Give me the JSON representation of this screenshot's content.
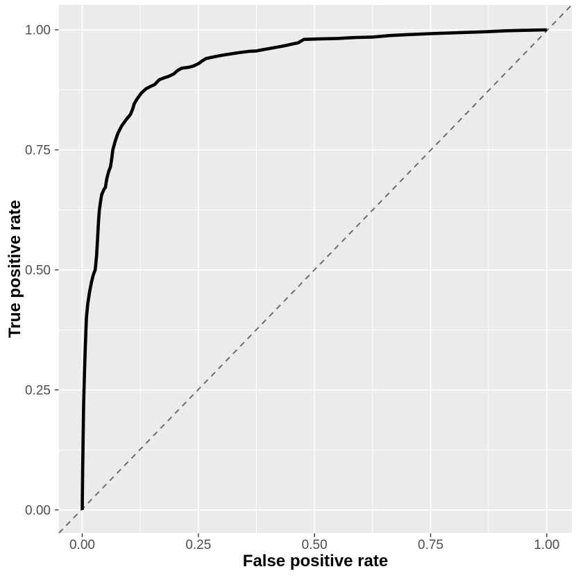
{
  "figure": {
    "kind": "ggplot-style ROC curve plot",
    "background_color": "#FFFFFF",
    "panel_color": "#EBEBEB",
    "grid_color": "#FFFFFF",
    "axis_text_color": "#4D4D4D",
    "axis_title_color": "#000000",
    "tick_mark_color": "#333333",
    "roc_curve_color": "#000000",
    "diagonal_color": "#6B6B6B"
  },
  "chart_data": {
    "type": "line",
    "title": "",
    "xlabel": "False positive rate",
    "ylabel": "True positive rate",
    "xlim": [
      0,
      1
    ],
    "ylim": [
      0,
      1
    ],
    "expansion": {
      "x": [
        -0.05,
        1.054
      ],
      "y": [
        -0.048,
        1.052
      ]
    },
    "grid": "major+minor",
    "legend": "none",
    "x_ticks": [
      {
        "value": 0.0,
        "label": "0.00"
      },
      {
        "value": 0.25,
        "label": "0.25"
      },
      {
        "value": 0.5,
        "label": "0.50"
      },
      {
        "value": 0.75,
        "label": "0.75"
      },
      {
        "value": 1.0,
        "label": "1.00"
      }
    ],
    "y_ticks": [
      {
        "value": 0.0,
        "label": "0.00"
      },
      {
        "value": 0.25,
        "label": "0.25"
      },
      {
        "value": 0.5,
        "label": "0.50"
      },
      {
        "value": 0.75,
        "label": "0.75"
      },
      {
        "value": 1.0,
        "label": "1.00"
      }
    ],
    "minor_breaks": [
      0.125,
      0.375,
      0.625,
      0.875
    ],
    "series": [
      {
        "name": "roc-curve",
        "type": "line",
        "style": "solid",
        "color": "#000000",
        "width": 4.6,
        "points": [
          [
            0.0,
            0.0
          ],
          [
            0.001,
            0.08
          ],
          [
            0.002,
            0.15
          ],
          [
            0.003,
            0.22
          ],
          [
            0.005,
            0.29
          ],
          [
            0.007,
            0.35
          ],
          [
            0.009,
            0.4
          ],
          [
            0.012,
            0.43
          ],
          [
            0.016,
            0.455
          ],
          [
            0.02,
            0.475
          ],
          [
            0.024,
            0.49
          ],
          [
            0.028,
            0.5
          ],
          [
            0.031,
            0.53
          ],
          [
            0.033,
            0.565
          ],
          [
            0.035,
            0.6
          ],
          [
            0.037,
            0.625
          ],
          [
            0.04,
            0.645
          ],
          [
            0.042,
            0.657
          ],
          [
            0.047,
            0.668
          ],
          [
            0.05,
            0.672
          ],
          [
            0.053,
            0.69
          ],
          [
            0.057,
            0.705
          ],
          [
            0.061,
            0.715
          ],
          [
            0.064,
            0.735
          ],
          [
            0.066,
            0.75
          ],
          [
            0.071,
            0.768
          ],
          [
            0.077,
            0.785
          ],
          [
            0.085,
            0.8
          ],
          [
            0.094,
            0.812
          ],
          [
            0.104,
            0.824
          ],
          [
            0.109,
            0.836
          ],
          [
            0.112,
            0.846
          ],
          [
            0.118,
            0.856
          ],
          [
            0.127,
            0.868
          ],
          [
            0.137,
            0.877
          ],
          [
            0.147,
            0.882
          ],
          [
            0.156,
            0.886
          ],
          [
            0.166,
            0.896
          ],
          [
            0.176,
            0.9
          ],
          [
            0.186,
            0.903
          ],
          [
            0.197,
            0.908
          ],
          [
            0.205,
            0.915
          ],
          [
            0.214,
            0.92
          ],
          [
            0.23,
            0.922
          ],
          [
            0.24,
            0.925
          ],
          [
            0.251,
            0.93
          ],
          [
            0.258,
            0.935
          ],
          [
            0.266,
            0.94
          ],
          [
            0.28,
            0.943
          ],
          [
            0.301,
            0.947
          ],
          [
            0.32,
            0.95
          ],
          [
            0.341,
            0.953
          ],
          [
            0.358,
            0.955
          ],
          [
            0.375,
            0.956
          ],
          [
            0.397,
            0.96
          ],
          [
            0.42,
            0.964
          ],
          [
            0.437,
            0.967
          ],
          [
            0.455,
            0.971
          ],
          [
            0.465,
            0.973
          ],
          [
            0.477,
            0.98
          ],
          [
            0.51,
            0.981
          ],
          [
            0.55,
            0.982
          ],
          [
            0.59,
            0.984
          ],
          [
            0.625,
            0.985
          ],
          [
            0.66,
            0.988
          ],
          [
            0.7,
            0.99
          ],
          [
            0.75,
            0.992
          ],
          [
            0.81,
            0.994
          ],
          [
            0.87,
            0.996
          ],
          [
            0.91,
            0.998
          ],
          [
            0.95,
            0.999
          ],
          [
            1.0,
            1.0
          ]
        ]
      },
      {
        "name": "chance-diagonal",
        "type": "line",
        "style": "dashed",
        "color": "#6B6B6B",
        "width": 2,
        "slope": 1,
        "intercept": 0,
        "points": [
          [
            -0.05,
            -0.048
          ],
          [
            1.054,
            1.052
          ]
        ]
      }
    ]
  }
}
